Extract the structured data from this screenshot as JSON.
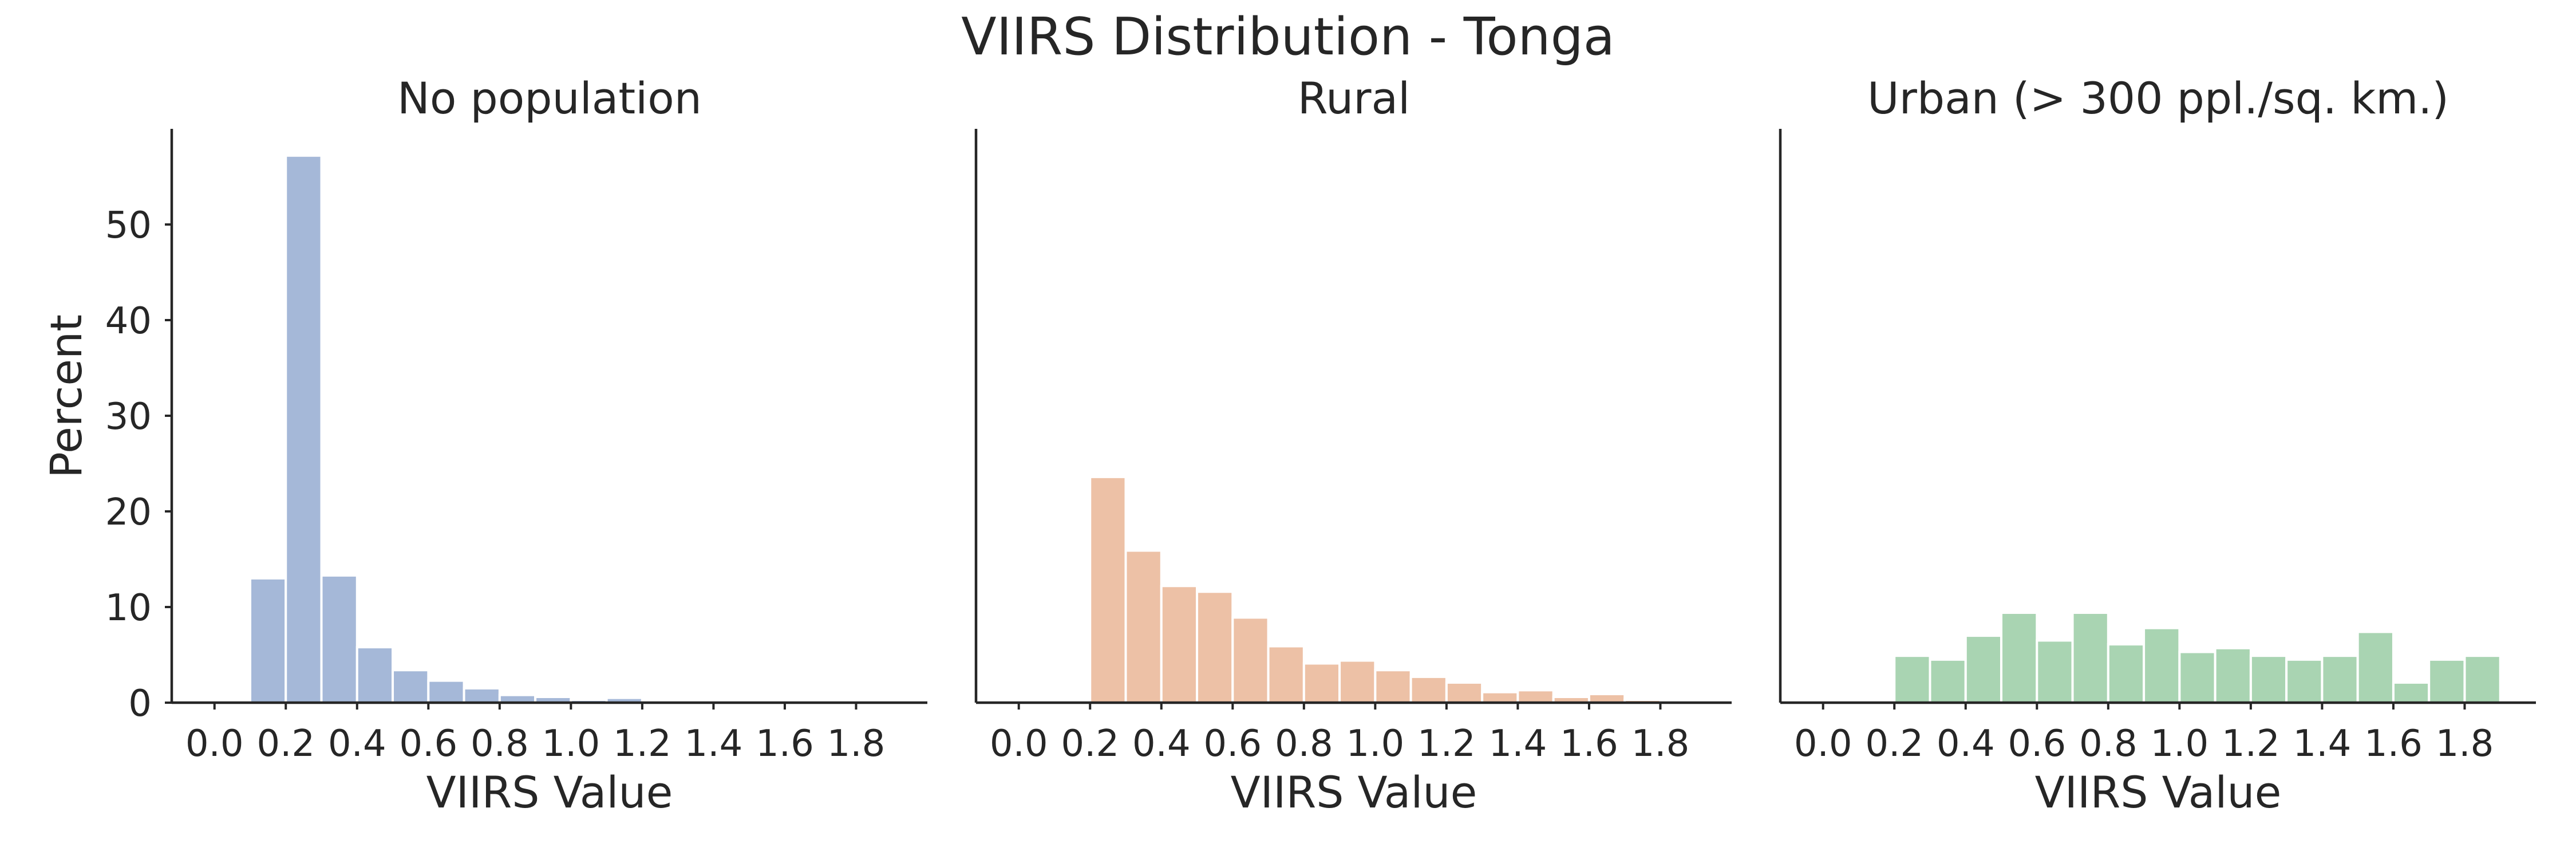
{
  "chart_data": {
    "title": "VIIRS Distribution - Tonga",
    "type": "bar",
    "ylabel": "Percent",
    "ylim": [
      0,
      60
    ],
    "yticks": [
      "0",
      "10",
      "20",
      "30",
      "40",
      "50"
    ],
    "xlim": [
      -0.12,
      2.0
    ],
    "xticks": [
      "0.0",
      "0.2",
      "0.4",
      "0.6",
      "0.8",
      "1.0",
      "1.2",
      "1.4",
      "1.6",
      "1.8"
    ],
    "panels": [
      {
        "title": "No population",
        "xlabel": "VIIRS Value",
        "color": "#a5b8d8",
        "bin_edges": [
          0.1,
          0.2,
          0.3,
          0.4,
          0.5,
          0.6,
          0.7,
          0.8,
          0.9,
          1.0,
          1.1,
          1.2,
          1.3
        ],
        "values": [
          13.0,
          57.2,
          13.3,
          5.8,
          3.4,
          2.3,
          1.5,
          0.8,
          0.6,
          0.3,
          0.5,
          0.2
        ]
      },
      {
        "title": "Rural",
        "xlabel": "VIIRS Value",
        "color": "#edc1a6",
        "bin_edges": [
          0.2,
          0.3,
          0.4,
          0.5,
          0.6,
          0.7,
          0.8,
          0.9,
          1.0,
          1.1,
          1.2,
          1.3,
          1.4,
          1.5,
          1.6,
          1.7,
          1.8,
          1.9
        ],
        "values": [
          23.6,
          15.9,
          12.2,
          11.6,
          8.9,
          5.9,
          4.1,
          4.4,
          3.4,
          2.7,
          2.1,
          1.1,
          1.3,
          0.6,
          0.9,
          0.3,
          0.1
        ]
      },
      {
        "title": "Urban (> 300 ppl./sq. km.)",
        "xlabel": "VIIRS Value",
        "color": "#a9d4b2",
        "bin_edges": [
          0.2,
          0.3,
          0.4,
          0.5,
          0.6,
          0.7,
          0.8,
          0.9,
          1.0,
          1.1,
          1.2,
          1.3,
          1.4,
          1.5,
          1.6,
          1.7,
          1.8,
          1.9
        ],
        "values": [
          4.9,
          4.5,
          7.0,
          9.4,
          6.5,
          9.4,
          6.1,
          7.8,
          5.3,
          5.7,
          4.9,
          4.5,
          4.9,
          7.4,
          2.1,
          4.5,
          4.9
        ]
      }
    ]
  }
}
